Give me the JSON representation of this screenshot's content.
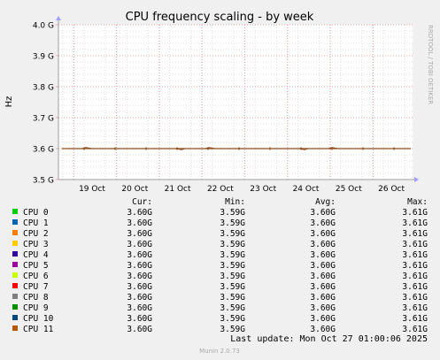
{
  "chart_data": {
    "type": "line",
    "title": "CPU frequency scaling - by week",
    "ylabel": "Hz",
    "watermark": "RRDTOOL / TOBI OETIKER",
    "yticks": [
      "4.0 G",
      "3.9 G",
      "3.8 G",
      "3.7 G",
      "3.6 G",
      "3.5 G"
    ],
    "ylim": [
      3.5,
      4.0
    ],
    "xticks": [
      "19 Oct",
      "20 Oct",
      "21 Oct",
      "22 Oct",
      "23 Oct",
      "24 Oct",
      "25 Oct",
      "26 Oct"
    ],
    "grid": true,
    "colors": {
      "background": "#f0f0f0",
      "plot_background": "#ffffff",
      "major_grid": "#e7a7a7",
      "minor_grid": "#e0e0e0",
      "axis": "#a0a0a0",
      "arrow": "#a0a0ff",
      "line": "#8b4a1a"
    },
    "series": [
      {
        "name": "CPU 0",
        "color": "#00cc00",
        "cur": "3.60G",
        "min": "3.59G",
        "avg": "3.60G",
        "max": "3.61G"
      },
      {
        "name": "CPU 1",
        "color": "#0066b3",
        "cur": "3.60G",
        "min": "3.59G",
        "avg": "3.60G",
        "max": "3.61G"
      },
      {
        "name": "CPU 2",
        "color": "#ff8000",
        "cur": "3.60G",
        "min": "3.59G",
        "avg": "3.60G",
        "max": "3.61G"
      },
      {
        "name": "CPU 3",
        "color": "#ffcc00",
        "cur": "3.60G",
        "min": "3.59G",
        "avg": "3.60G",
        "max": "3.61G"
      },
      {
        "name": "CPU 4",
        "color": "#330099",
        "cur": "3.60G",
        "min": "3.59G",
        "avg": "3.60G",
        "max": "3.61G"
      },
      {
        "name": "CPU 5",
        "color": "#990099",
        "cur": "3.60G",
        "min": "3.59G",
        "avg": "3.60G",
        "max": "3.61G"
      },
      {
        "name": "CPU 6",
        "color": "#ccff00",
        "cur": "3.60G",
        "min": "3.59G",
        "avg": "3.60G",
        "max": "3.61G"
      },
      {
        "name": "CPU 7",
        "color": "#ff0000",
        "cur": "3.60G",
        "min": "3.59G",
        "avg": "3.60G",
        "max": "3.61G"
      },
      {
        "name": "CPU 8",
        "color": "#808080",
        "cur": "3.60G",
        "min": "3.59G",
        "avg": "3.60G",
        "max": "3.61G"
      },
      {
        "name": "CPU 9",
        "color": "#008f00",
        "cur": "3.60G",
        "min": "3.59G",
        "avg": "3.60G",
        "max": "3.61G"
      },
      {
        "name": "CPU 10",
        "color": "#00487d",
        "cur": "3.60G",
        "min": "3.59G",
        "avg": "3.60G",
        "max": "3.61G"
      },
      {
        "name": "CPU 11",
        "color": "#b35a00",
        "cur": "3.60G",
        "min": "3.59G",
        "avg": "3.60G",
        "max": "3.61G"
      }
    ]
  },
  "legend_headers": {
    "cur": "Cur:",
    "min": "Min:",
    "avg": "Avg:",
    "max": "Max:"
  },
  "footer": {
    "last_update": "Last update: Mon Oct 27 01:00:06 2025",
    "version": "Munin 2.0.73"
  }
}
